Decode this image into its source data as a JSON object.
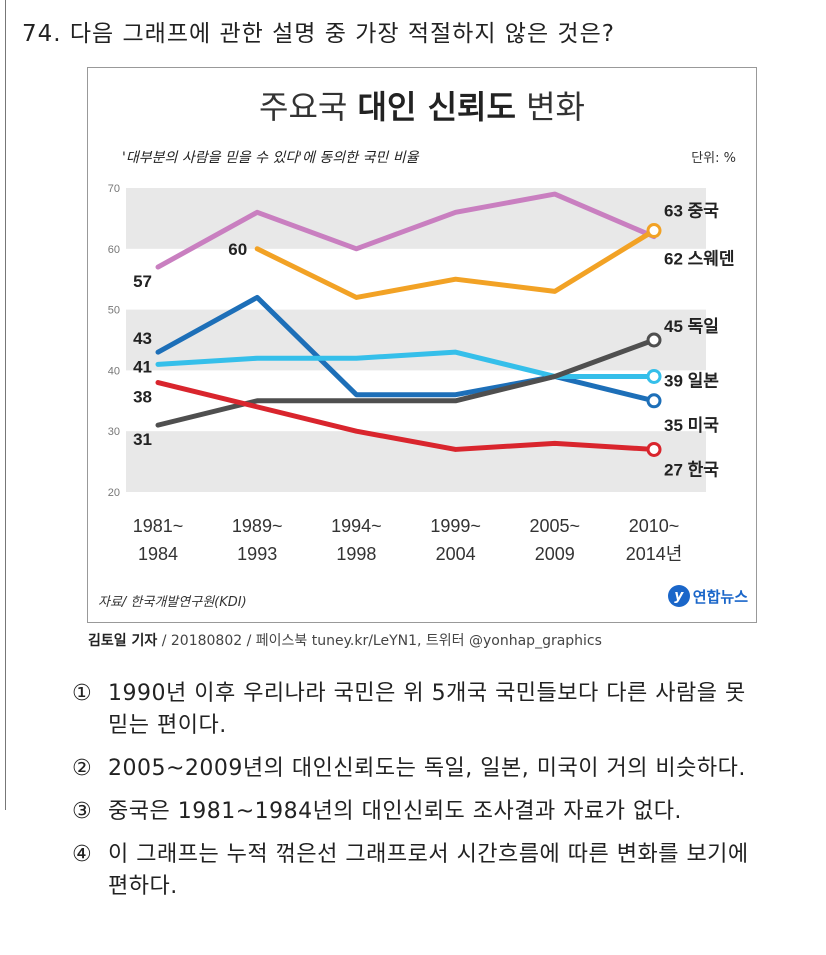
{
  "question": "74. 다음 그래프에 관한 설명 중 가장 적절하지 않은 것은?",
  "figure": {
    "title_prefix": "주요국 ",
    "title_bold": "대인 신뢰도",
    "title_suffix": " 변화",
    "subtitle": "'대부분의 사람을 믿을 수 있다'에 동의한 국민 비율",
    "unit": "단위: %",
    "source": "자료/ 한국개발연구원(KDI)",
    "logo_text": "연합뉴스",
    "credit_bold": "김토일 기자",
    "credit_rest": " / 20180802 / 페이스북 tuney.kr/LeYN1, 트위터 @yonhap_graphics"
  },
  "chart_data": {
    "type": "line",
    "title": "주요국 대인 신뢰도 변화",
    "subtitle": "'대부분의 사람을 믿을 수 있다'에 동의한 국민 비율",
    "unit": "%",
    "ylim": [
      20,
      70
    ],
    "yticks": [
      20,
      30,
      40,
      50,
      60,
      70
    ],
    "grid": "alternating bands",
    "categories": [
      [
        "1981~",
        "1984"
      ],
      [
        "1989~",
        "1993"
      ],
      [
        "1994~",
        "1998"
      ],
      [
        "1999~",
        "2004"
      ],
      [
        "2005~",
        "2009"
      ],
      [
        "2010~",
        "2014년"
      ]
    ],
    "series": [
      {
        "name": "스웨덴",
        "color": "#c97fc0",
        "values": [
          57,
          66,
          60,
          66,
          69,
          62
        ],
        "start_label": "57",
        "end_label": "62 스웨덴",
        "end_marker": false
      },
      {
        "name": "중국",
        "color": "#f2a225",
        "values": [
          null,
          60,
          52,
          55,
          53,
          63
        ],
        "start_label": "60",
        "end_label": "63 중국",
        "end_marker": true
      },
      {
        "name": "미국",
        "color": "#1d6fb8",
        "values": [
          43,
          52,
          36,
          36,
          39,
          35
        ],
        "start_label": "43",
        "end_label": "35 미국",
        "end_marker": true
      },
      {
        "name": "일본",
        "color": "#35bfea",
        "values": [
          41,
          42,
          42,
          43,
          39,
          39
        ],
        "start_label": "41",
        "end_label": "39 일본",
        "end_marker": true
      },
      {
        "name": "독일",
        "color": "#4f4f4f",
        "values": [
          31,
          35,
          35,
          35,
          39,
          45
        ],
        "start_label": "31",
        "end_label": "45 독일",
        "end_marker": true
      },
      {
        "name": "한국",
        "color": "#d9252d",
        "values": [
          38,
          34,
          30,
          27,
          28,
          27
        ],
        "start_label": "38",
        "end_label": "27 한국",
        "end_marker": true
      }
    ]
  },
  "options": [
    {
      "num": "①",
      "text": "1990년 이후 우리나라 국민은 위 5개국 국민들보다 다른 사람을 못 믿는 편이다."
    },
    {
      "num": "②",
      "text": "2005~2009년의 대인신뢰도는 독일, 일본, 미국이 거의 비슷하다."
    },
    {
      "num": "③",
      "text": "중국은 1981~1984년의 대인신뢰도 조사결과 자료가 없다."
    },
    {
      "num": "④",
      "text": "이 그래프는 누적 꺾은선 그래프로서 시간흐름에 따른 변화를 보기에 편하다."
    }
  ]
}
